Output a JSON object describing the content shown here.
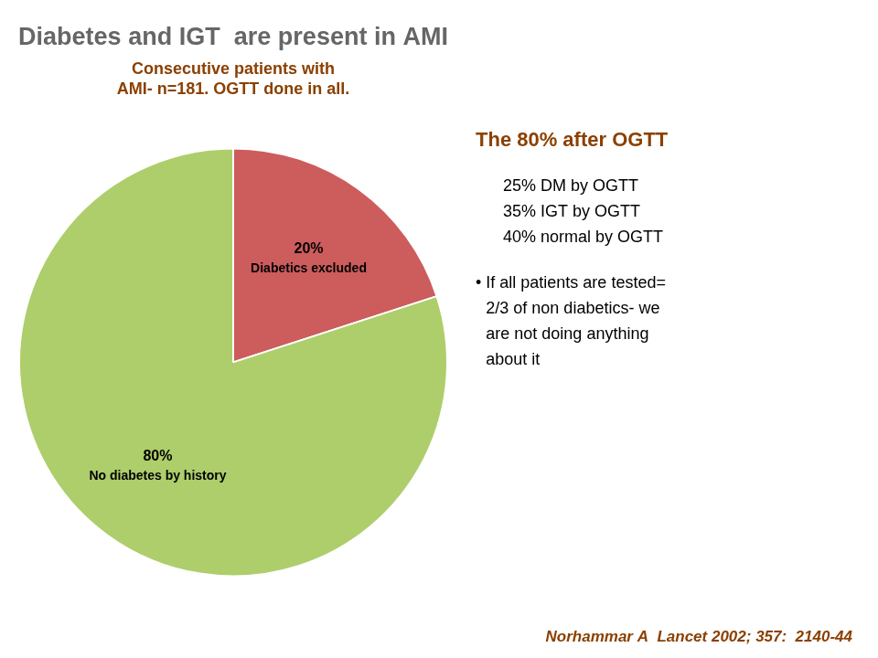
{
  "chart_data": {
    "type": "pie",
    "title": "Diabetes and IGT  are present in AMI",
    "subtitle": [
      "Consecutive patients with",
      "AMI- n=181. OGTT done in all."
    ],
    "categories": [
      "Diabetics excluded",
      "No diabetes by history"
    ],
    "values": [
      20,
      80
    ],
    "value_labels": [
      "20%",
      "80%"
    ],
    "colors": [
      "#CD5C5C",
      "#ADCE6B"
    ],
    "data_labels": true,
    "legend": false,
    "annotations": [
      [
        "The 80% after OGTT"
      ],
      [
        "25% DM by OGTT",
        "35% IGT by OGTT",
        "40% normal by OGTT"
      ],
      [
        "• If all patients are tested=",
        "2/3 of non diabetics- we",
        "are not doing anything",
        "about it"
      ],
      [
        "Norhammar A  Lancet 2002; 357:  2140-44"
      ]
    ]
  }
}
